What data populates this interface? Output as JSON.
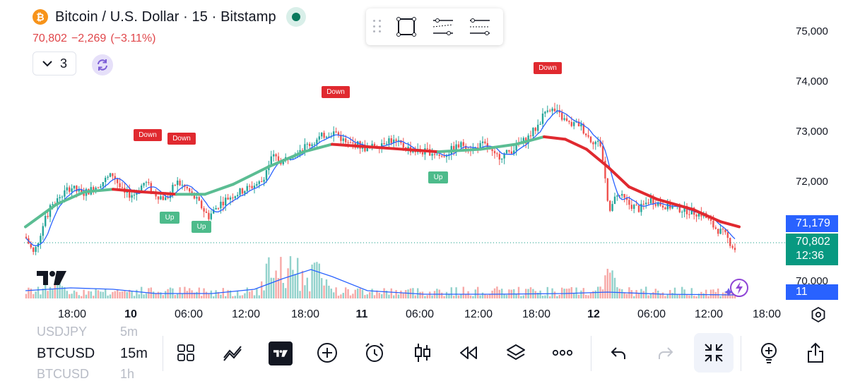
{
  "header": {
    "title": "Bitcoin / U.S. Dollar · 15 · Bitstamp",
    "coin_icon_glyph": "₿",
    "last_price": "70,802",
    "change": "−2,269",
    "change_pct": "(−3.11%)",
    "indicators_count": "3"
  },
  "price_axis": [
    "75,000",
    "74,000",
    "73,000",
    "72,000",
    "70,000"
  ],
  "price_tags": {
    "ma_value": "71,179",
    "last_price": "70,802",
    "countdown": "12:36",
    "volume": "11"
  },
  "time_axis": [
    {
      "label": "18:00",
      "bold": false
    },
    {
      "label": "10",
      "bold": true
    },
    {
      "label": "06:00",
      "bold": false
    },
    {
      "label": "12:00",
      "bold": false
    },
    {
      "label": "18:00",
      "bold": false
    },
    {
      "label": "11",
      "bold": true
    },
    {
      "label": "06:00",
      "bold": false
    },
    {
      "label": "12:00",
      "bold": false
    },
    {
      "label": "18:00",
      "bold": false
    },
    {
      "label": "12",
      "bold": true
    },
    {
      "label": "06:00",
      "bold": false
    },
    {
      "label": "12:00",
      "bold": false
    },
    {
      "label": "18:00",
      "bold": false
    }
  ],
  "signals": [
    {
      "type": "down",
      "label": "Down"
    },
    {
      "type": "down",
      "label": "Down"
    },
    {
      "type": "down",
      "label": "Down"
    },
    {
      "type": "down",
      "label": "Down"
    },
    {
      "type": "up",
      "label": "Up"
    },
    {
      "type": "up",
      "label": "Up"
    },
    {
      "type": "up",
      "label": "Up"
    }
  ],
  "bottom_bar": {
    "symbol_above": "USDJPY",
    "tf_above": "5m",
    "symbol": "BTCUSD",
    "timeframe": "15m",
    "symbol_below": "BTCUSD",
    "tf_below": "1h",
    "tools": [
      "grid-icon",
      "indicators-icon",
      "tradingview-icon",
      "plus-icon",
      "alarm-icon",
      "candles-icon",
      "replay-icon",
      "layers-icon",
      "more-icon",
      "undo-icon",
      "redo-icon",
      "fullscreen-exit-icon",
      "add-pin-icon",
      "share-icon"
    ]
  },
  "colors": {
    "up": "#26a69a",
    "down": "#ef5350",
    "ma_fast": "#2962ff",
    "ma_slow_up": "#5bbd93",
    "ma_slow_down": "#e0292f",
    "accent": "#2962ff"
  }
}
